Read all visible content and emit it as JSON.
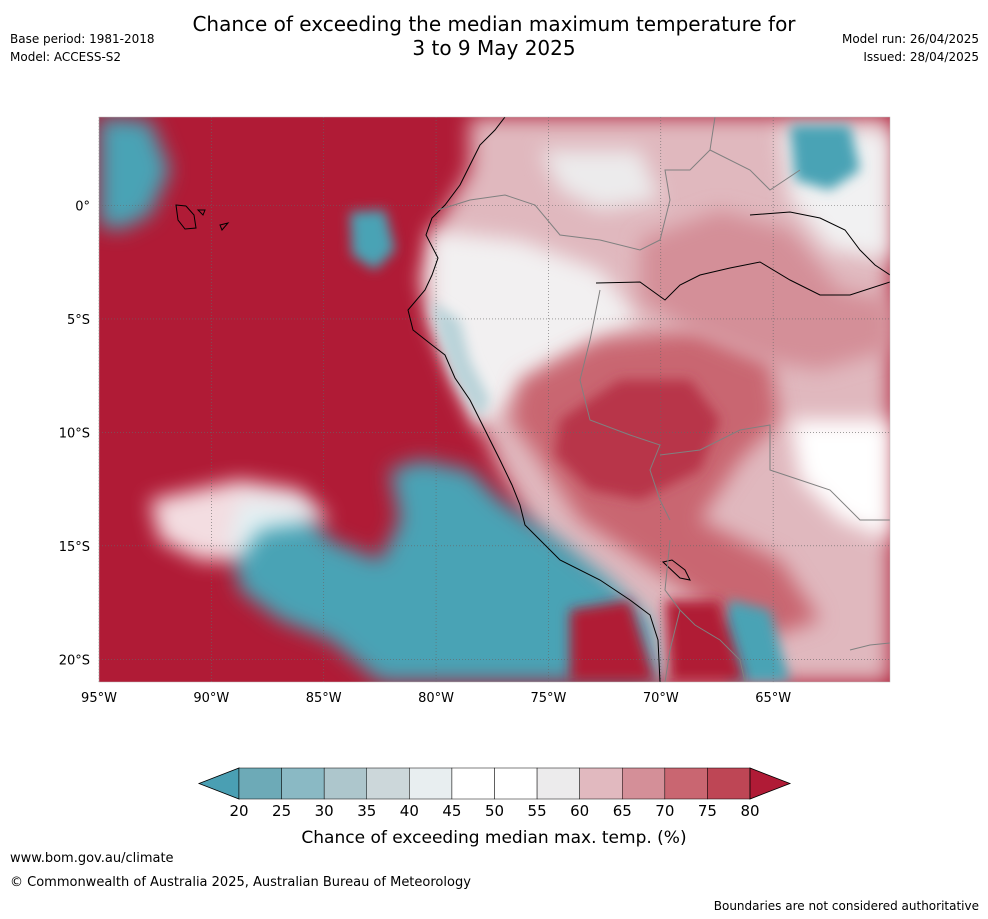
{
  "header": {
    "title_line1": "Chance of exceeding the median maximum temperature for",
    "title_line2": "3 to 9 May 2025",
    "base_period": "Base period: 1981-2018",
    "model": "Model: ACCESS-S2",
    "model_run": "Model run: 26/04/2025",
    "issued": "Issued: 28/04/2025"
  },
  "map": {
    "lat_labels": [
      "0°",
      "5°S",
      "10°S",
      "15°S",
      "20°S"
    ],
    "lat_values": [
      0,
      -5,
      -10,
      -15,
      -20
    ],
    "lon_labels": [
      "95°W",
      "90°W",
      "85°W",
      "80°W",
      "75°W",
      "70°W",
      "65°W"
    ],
    "lon_values": [
      -95,
      -90,
      -85,
      -80,
      -75,
      -70,
      -65
    ],
    "extent": {
      "lon_min": -95,
      "lon_max": -59.8,
      "lat_min": -21,
      "lat_max": 3.9
    },
    "colors": {
      "hot": "#b01b36",
      "cool": "#4aa3b5",
      "neutral": "#ffffff",
      "coast": "#000000",
      "border": "#808080",
      "grid": "#666666"
    }
  },
  "colorbar": {
    "tick_labels": [
      "20",
      "25",
      "30",
      "35",
      "40",
      "45",
      "50",
      "55",
      "60",
      "65",
      "70",
      "75",
      "80"
    ],
    "colors": [
      "#4a9fb3",
      "#6daab7",
      "#8ab9c4",
      "#adc6cc",
      "#ccd7da",
      "#e8eef0",
      "#ffffff",
      "#ffffff",
      "#ecebec",
      "#e1b9bf",
      "#d48f98",
      "#c96671",
      "#be4655",
      "#b01b36"
    ],
    "label": "Chance of exceeding median max. temp. (%)"
  },
  "footer": {
    "url": "www.bom.gov.au/climate",
    "copyright": "© Commonwealth of Australia 2025, Australian Bureau of Meteorology",
    "disclaimer": "Boundaries are not considered authoritative"
  }
}
